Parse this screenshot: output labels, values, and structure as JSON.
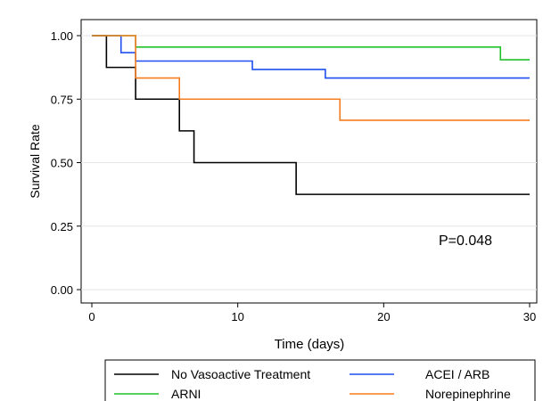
{
  "chart_data": {
    "type": "line",
    "subtype": "kaplan-meier step",
    "title": "",
    "xlabel": "Time (days)",
    "ylabel": "Survival Rate",
    "xlim": [
      0,
      30
    ],
    "ylim": [
      0,
      1
    ],
    "x_ticks": [
      0,
      10,
      20,
      30
    ],
    "y_ticks": [
      "0.00",
      "0.25",
      "0.50",
      "0.75",
      "1.00"
    ],
    "grid": "horizontal",
    "annotation": "P=0.048",
    "legend_position": "bottom",
    "series": [
      {
        "name": "No Vasoactive Treatment",
        "color": "#000000",
        "points": [
          [
            0,
            1.0
          ],
          [
            1,
            0.875
          ],
          [
            3,
            0.75
          ],
          [
            6,
            0.625
          ],
          [
            7,
            0.5
          ],
          [
            14,
            0.375
          ],
          [
            30,
            0.375
          ]
        ]
      },
      {
        "name": "ACEI / ARB",
        "color": "#1f4ff0",
        "points": [
          [
            0,
            1.0
          ],
          [
            2,
            0.933
          ],
          [
            3,
            0.9
          ],
          [
            11,
            0.867
          ],
          [
            16,
            0.833
          ],
          [
            30,
            0.833
          ]
        ]
      },
      {
        "name": "ARNI",
        "color": "#22c02a",
        "points": [
          [
            0,
            1.0
          ],
          [
            3,
            0.955
          ],
          [
            28,
            0.905
          ],
          [
            30,
            0.905
          ]
        ]
      },
      {
        "name": "Norepinephrine",
        "color": "#f57c1f",
        "points": [
          [
            0,
            1.0
          ],
          [
            3,
            0.833
          ],
          [
            6,
            0.75
          ],
          [
            17,
            0.667
          ],
          [
            30,
            0.667
          ]
        ]
      }
    ]
  }
}
